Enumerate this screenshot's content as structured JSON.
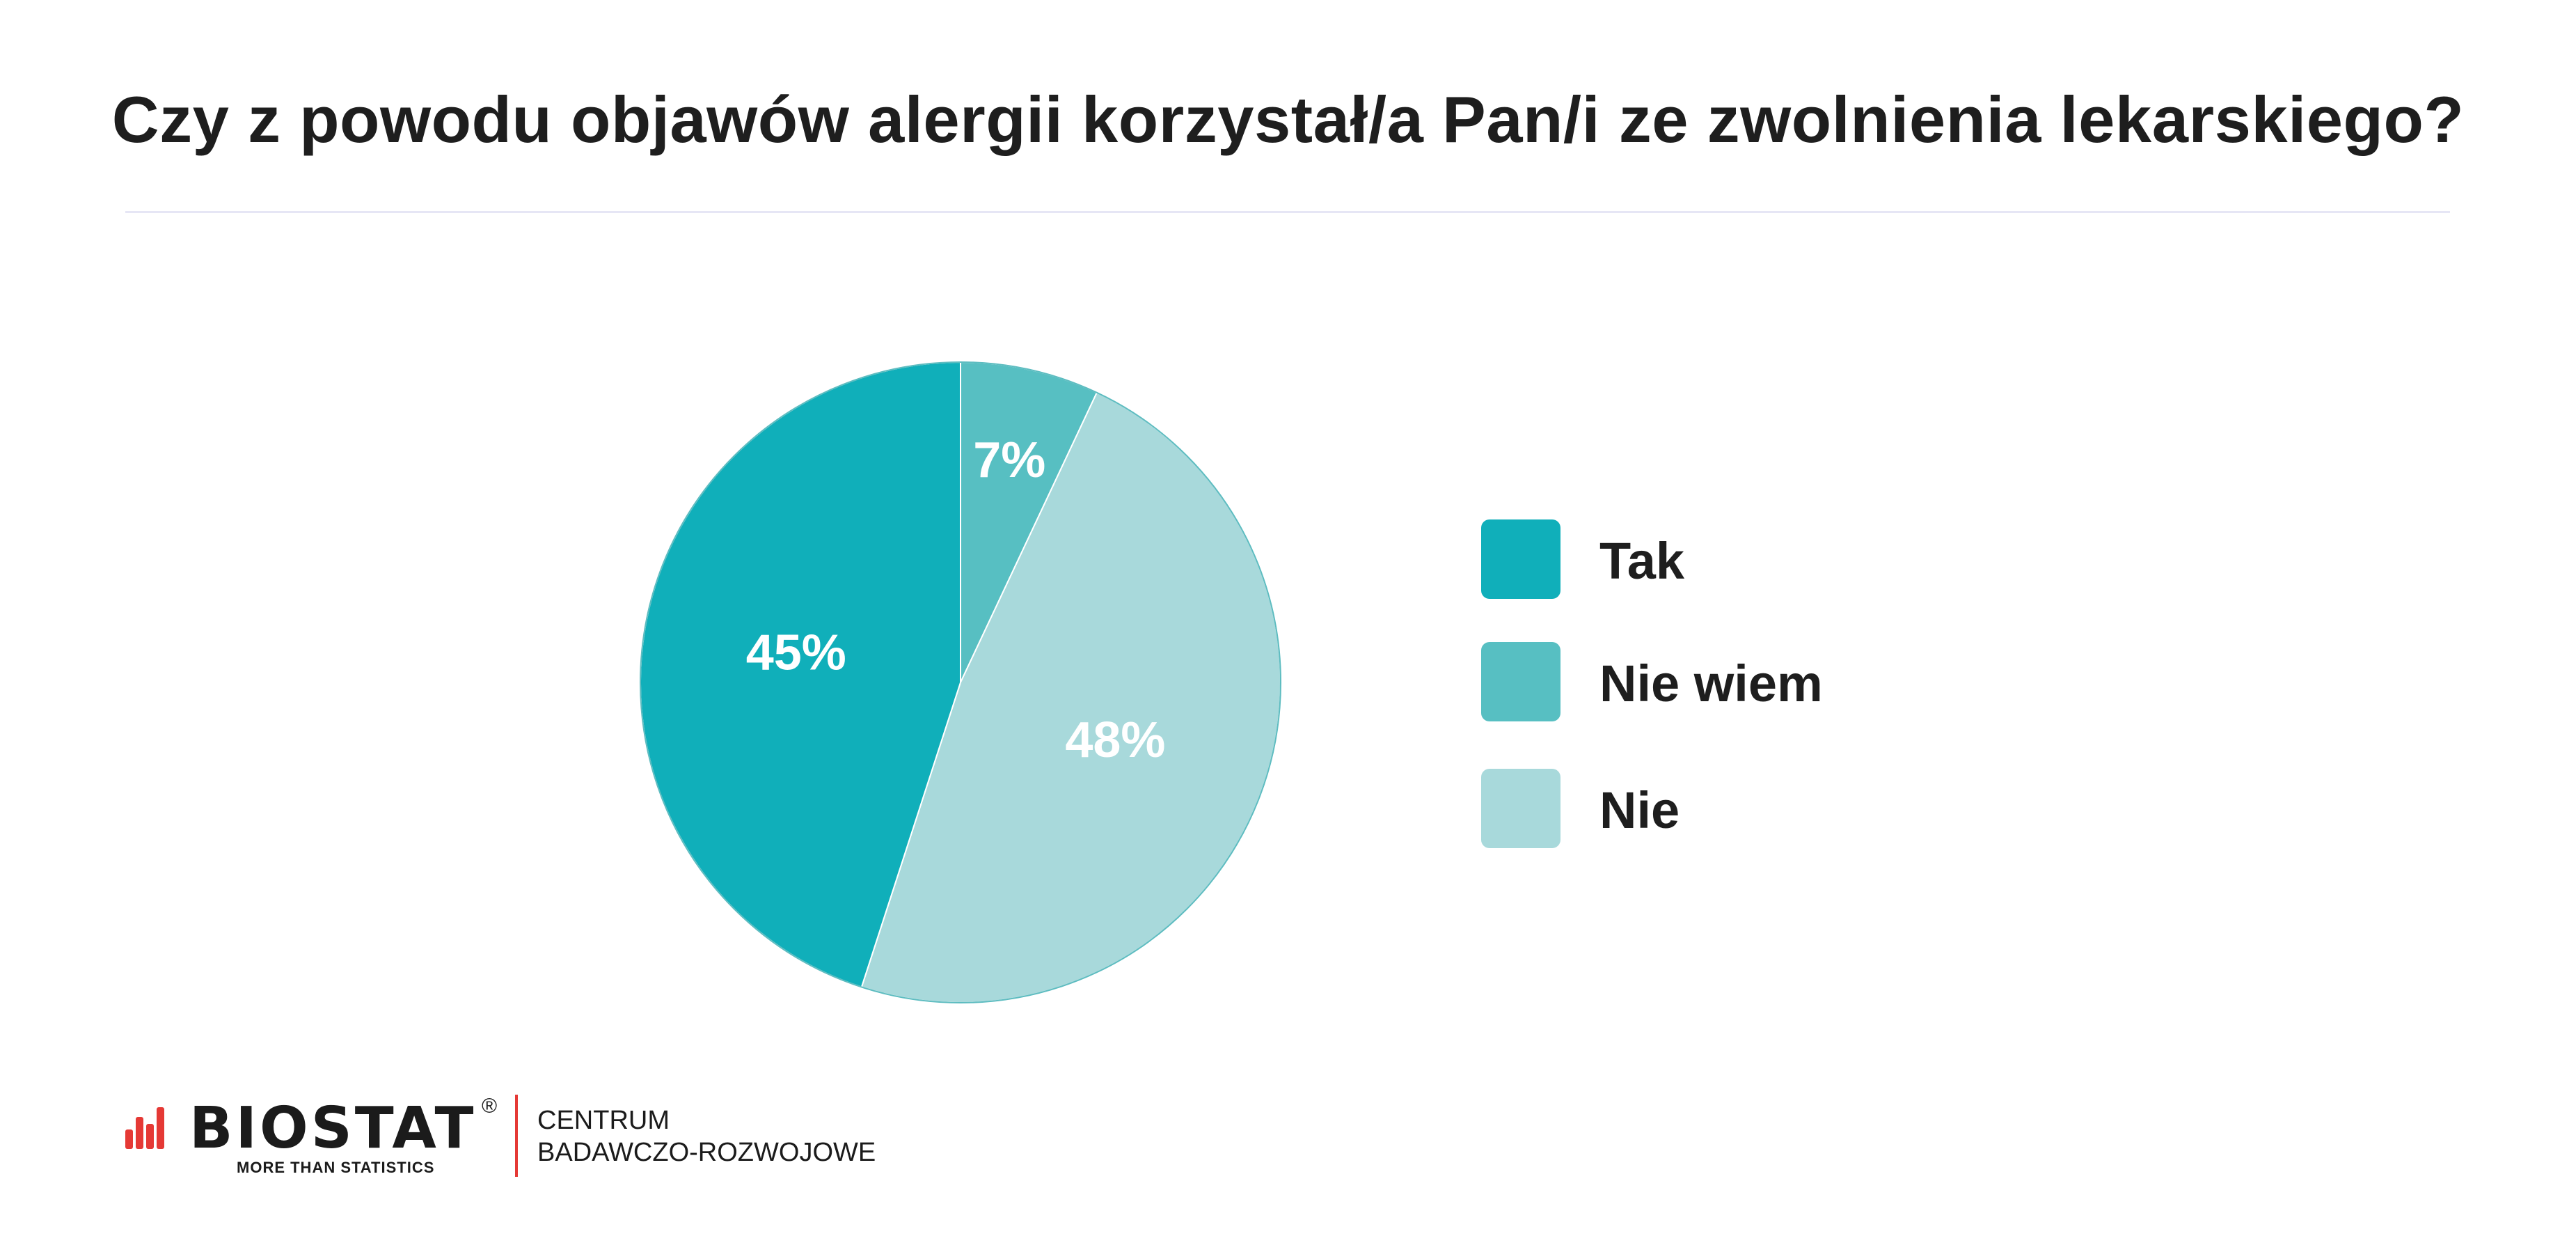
{
  "title": "Czy z powodu objawów alergii korzystał/a Pan/i ze zwolnienia lekarskiego?",
  "chart_data": {
    "type": "pie",
    "categories": [
      "Tak",
      "Nie wiem",
      "Nie"
    ],
    "values": [
      45,
      7,
      48
    ],
    "value_labels": [
      "45%",
      "7%",
      "48%"
    ],
    "colors": [
      "#10afba",
      "#57bfc2",
      "#a8d9db"
    ],
    "slice_order": [
      "Nie wiem",
      "Nie",
      "Tak"
    ],
    "start_angle": "12 o'clock",
    "direction": "clockwise",
    "legend_position": "right"
  },
  "legend": {
    "items": [
      {
        "label": "Tak",
        "color": "#10afba"
      },
      {
        "label": "Nie wiem",
        "color": "#57bfc2"
      },
      {
        "label": "Nie",
        "color": "#a8d9db"
      }
    ]
  },
  "logo": {
    "wordmark": "BIOSTAT",
    "registered": "®",
    "tagline": "MORE THAN STATISTICS",
    "line1": "CENTRUM",
    "line2": "BADAWCZO-ROZWOJOWE",
    "accent_color": "#e53935"
  }
}
